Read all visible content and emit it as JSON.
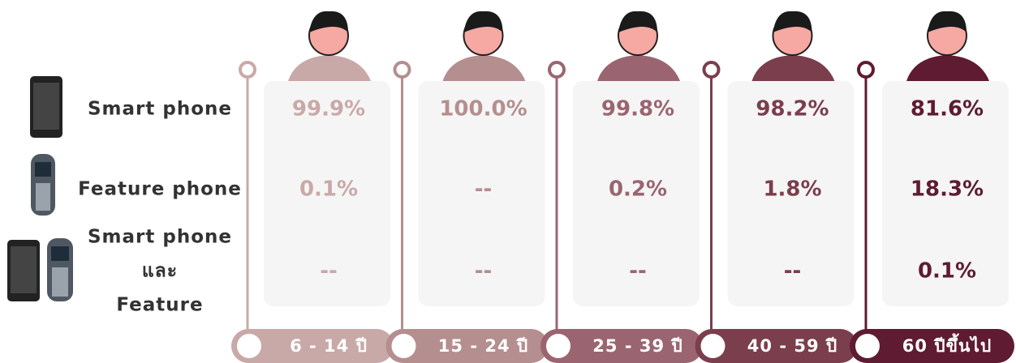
{
  "rows": [
    {
      "label": [
        "Smart phone"
      ]
    },
    {
      "label": [
        "Feature phone"
      ]
    },
    {
      "label": [
        "Smart phone",
        "และ",
        "Feature"
      ]
    }
  ],
  "columns": [
    {
      "header": "6 - 14 ปี",
      "color": "#c9a9a8",
      "cells": [
        "99.9%",
        "0.1%",
        "--"
      ]
    },
    {
      "header": "15 - 24 ปี",
      "color": "#b58e8f",
      "cells": [
        "100.0%",
        "--",
        "--"
      ]
    },
    {
      "header": "25 - 39 ปี",
      "color": "#9a6570",
      "cells": [
        "99.8%",
        "0.2%",
        "--"
      ]
    },
    {
      "header": "40 - 59 ปี",
      "color": "#7b3e4d",
      "cells": [
        "98.2%",
        "1.8%",
        "--"
      ]
    },
    {
      "header": "60 ปีขึ้นไป",
      "color": "#5e1b31",
      "cells": [
        "81.6%",
        "18.3%",
        "0.1%"
      ]
    }
  ]
}
